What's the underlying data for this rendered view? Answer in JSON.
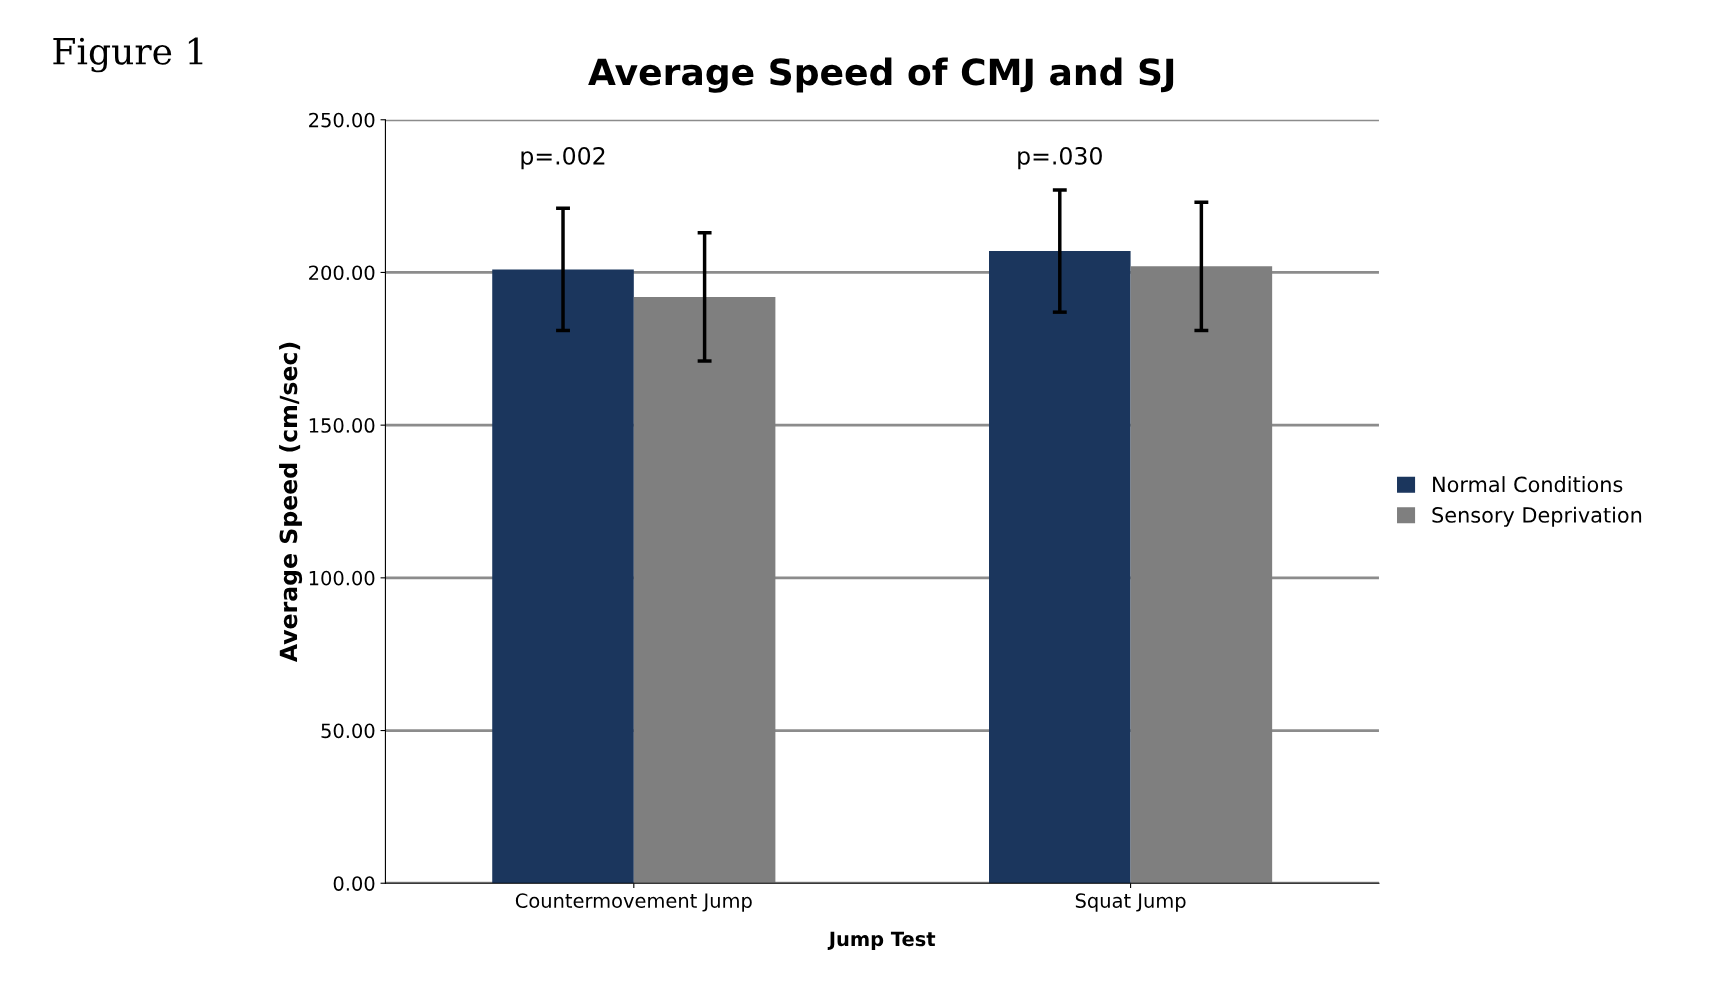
{
  "chart_data": {
    "type": "bar",
    "title": "Average Speed of CMJ and SJ",
    "xlabel": "Jump Test",
    "ylabel": "Average Speed (cm/sec)",
    "categories": [
      "Countermovement Jump",
      "Squat Jump"
    ],
    "series": [
      {
        "name": "Normal Conditions",
        "color": "#1b365d",
        "values": [
          201,
          207
        ],
        "errors": [
          20,
          20
        ]
      },
      {
        "name": "Sensory Deprivation",
        "color": "#7f7f7f",
        "values": [
          192,
          202
        ],
        "errors": [
          21,
          21
        ]
      }
    ],
    "ylim": [
      0,
      250
    ],
    "yticks": [
      {
        "value": 0,
        "label": "0.00"
      },
      {
        "value": 50,
        "label": "50.00"
      },
      {
        "value": 100,
        "label": "100.00"
      },
      {
        "value": 150,
        "label": "150.00"
      },
      {
        "value": 200,
        "label": "200.00"
      },
      {
        "value": 250,
        "label": "250.00"
      }
    ],
    "annotations": [
      "Figure 1",
      "p=.002",
      "p=.030"
    ],
    "grid": "y",
    "legend": "right"
  }
}
